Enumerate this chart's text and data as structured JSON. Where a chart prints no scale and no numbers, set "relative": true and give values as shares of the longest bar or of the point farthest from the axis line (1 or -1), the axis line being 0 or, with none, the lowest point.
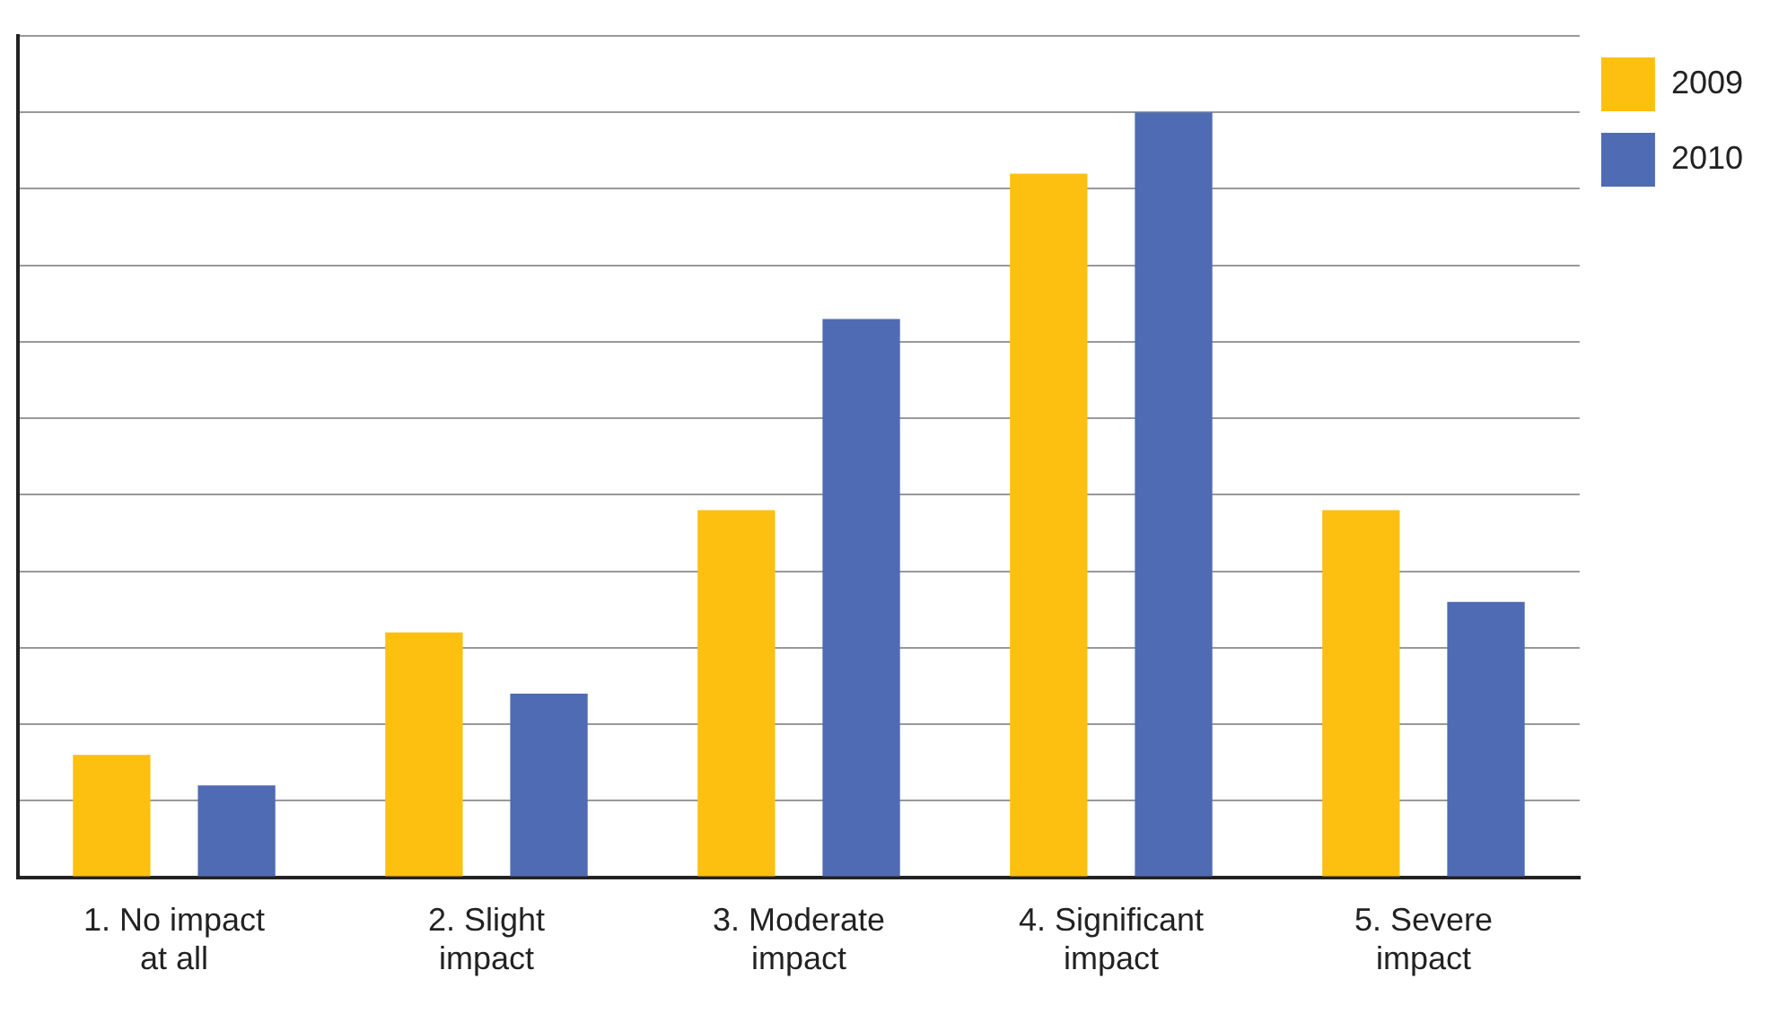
{
  "chart_data": {
    "type": "bar",
    "relative": true,
    "categories": [
      "1. No impact\nat all",
      "2. Slight\nimpact",
      "3. Moderate\nimpact",
      "4. Significant\nimpact",
      "5. Severe\nimpact"
    ],
    "series": [
      {
        "name": "2009",
        "color": "#fdc010",
        "values": [
          0.16,
          0.32,
          0.48,
          0.92,
          0.48
        ]
      },
      {
        "name": "2010",
        "color": "#4f6bb3",
        "values": [
          0.12,
          0.24,
          0.73,
          1,
          0.36
        ]
      }
    ],
    "grid": "y",
    "legend": "right"
  }
}
